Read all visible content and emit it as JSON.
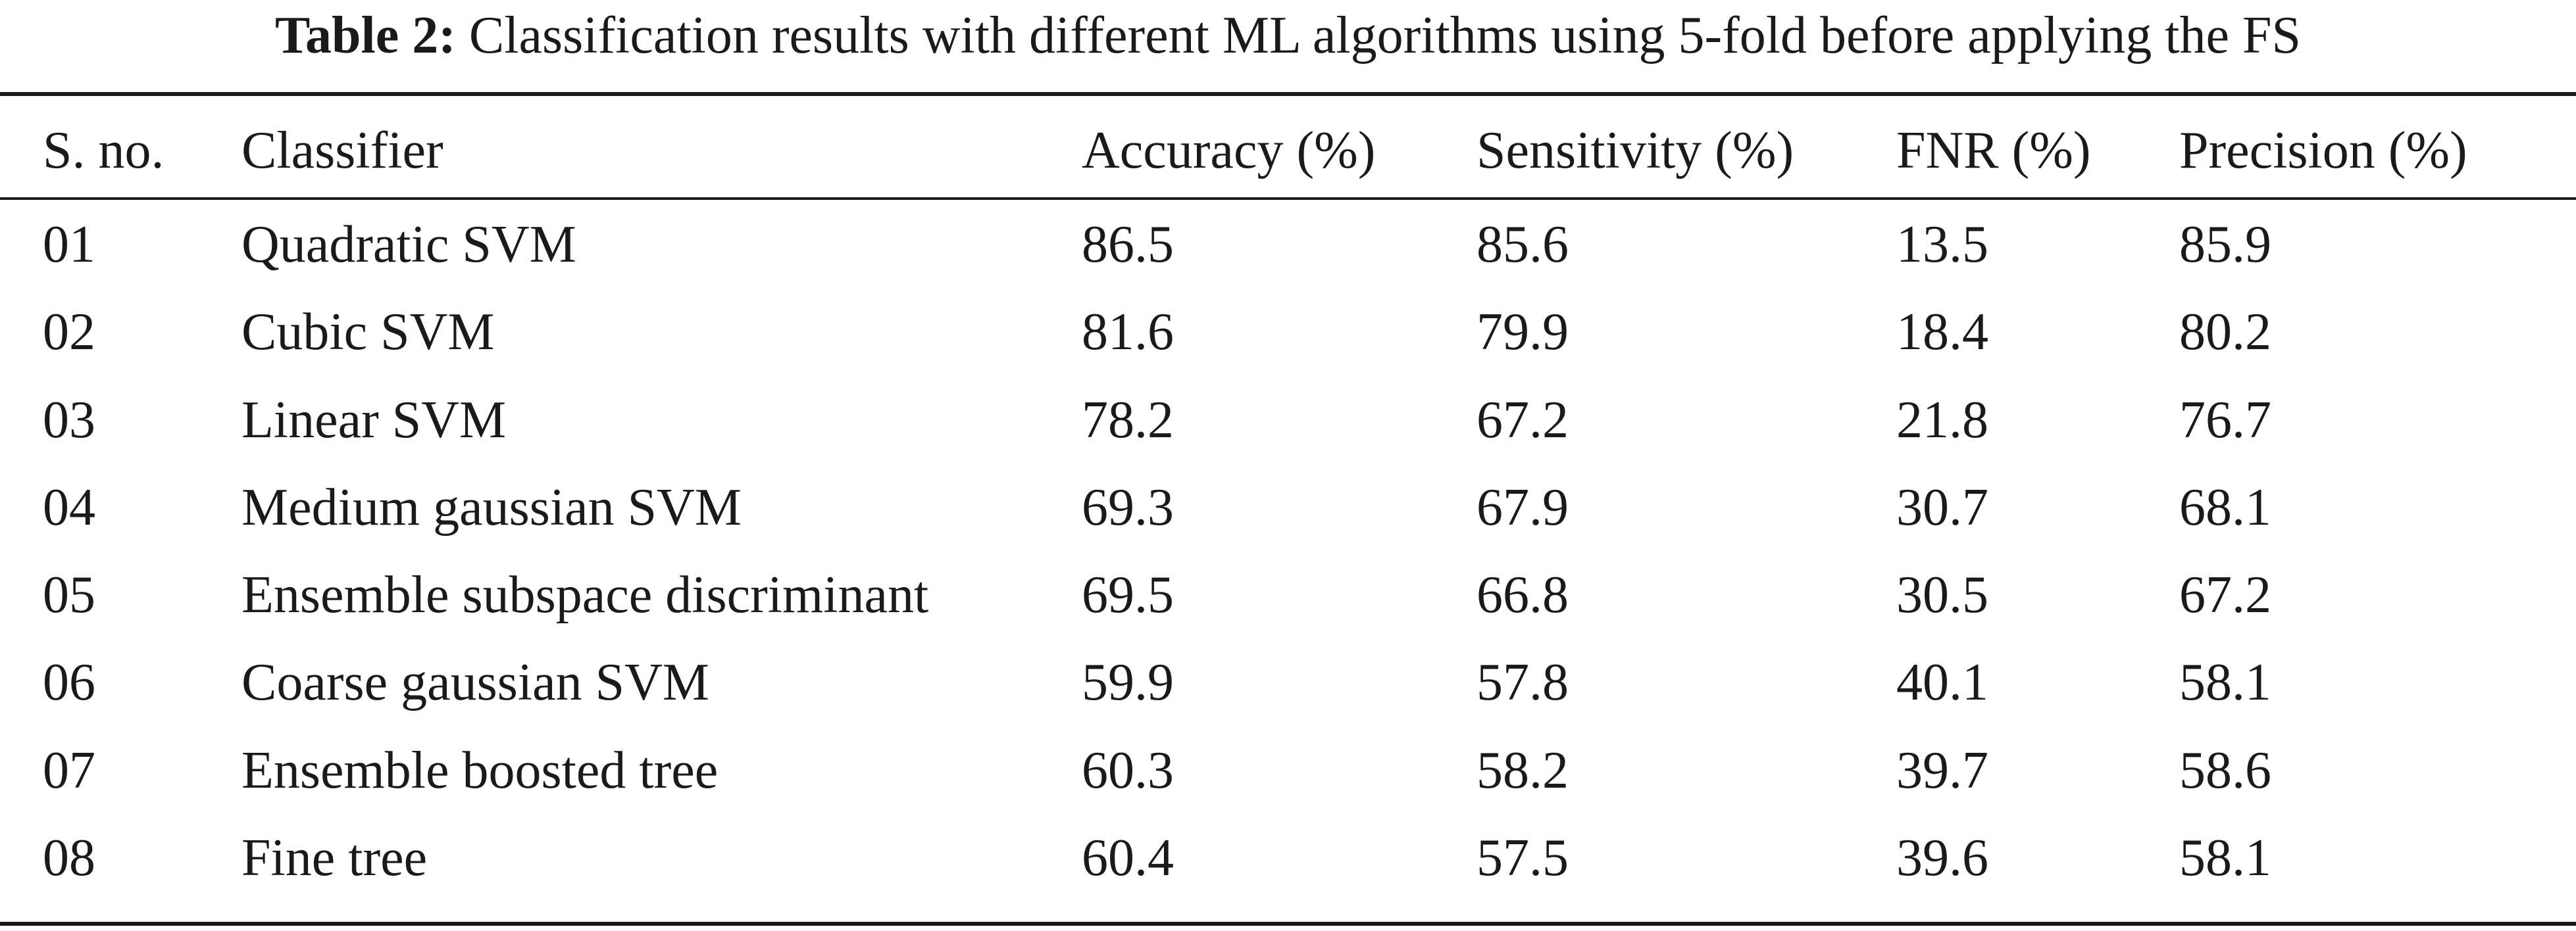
{
  "caption": {
    "label": "Table 2:",
    "text": "Classification results with different ML algorithms using 5-fold before applying the FS"
  },
  "table": {
    "headers": [
      "S. no.",
      "Classifier",
      "Accuracy (%)",
      "Sensitivity (%)",
      "FNR (%)",
      "Precision (%)"
    ],
    "rows": [
      [
        "01",
        "Quadratic SVM",
        "86.5",
        "85.6",
        "13.5",
        "85.9"
      ],
      [
        "02",
        "Cubic SVM",
        "81.6",
        "79.9",
        "18.4",
        "80.2"
      ],
      [
        "03",
        "Linear SVM",
        "78.2",
        "67.2",
        "21.8",
        "76.7"
      ],
      [
        "04",
        "Medium gaussian SVM",
        "69.3",
        "67.9",
        "30.7",
        "68.1"
      ],
      [
        "05",
        "Ensemble subspace discriminant",
        "69.5",
        "66.8",
        "30.5",
        "67.2"
      ],
      [
        "06",
        "Coarse gaussian SVM",
        "59.9",
        "57.8",
        "40.1",
        "58.1"
      ],
      [
        "07",
        "Ensemble boosted tree",
        "60.3",
        "58.2",
        "39.7",
        "58.6"
      ],
      [
        "08",
        "Fine tree",
        "60.4",
        "57.5",
        "39.6",
        "58.1"
      ]
    ]
  }
}
